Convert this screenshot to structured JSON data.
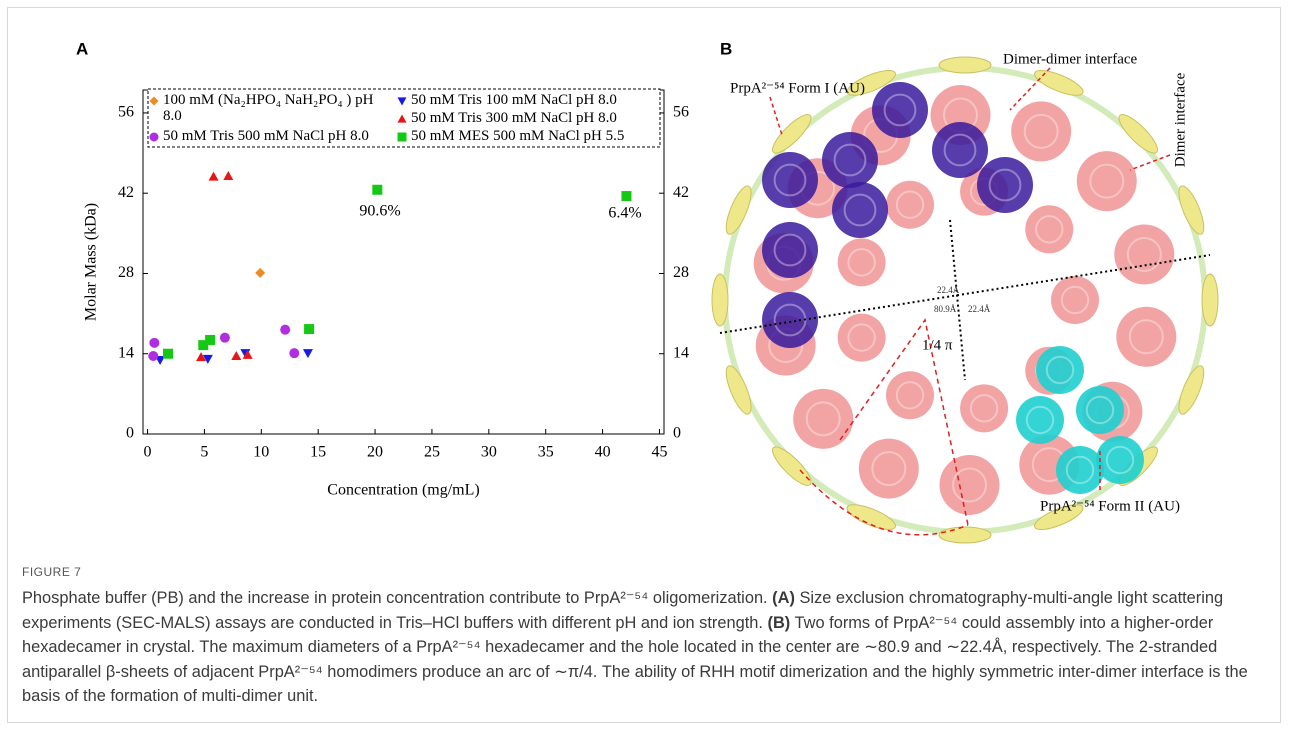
{
  "chart_data": {
    "type": "scatter",
    "panel_label": "A",
    "x_label": "Concentration (mg/mL)",
    "y_label": "Molar Mass (kDa)",
    "xlim": [
      -0.4,
      45.4
    ],
    "xticks": [
      0,
      5,
      10,
      15,
      20,
      25,
      30,
      35,
      40,
      45
    ],
    "ylim": [
      0,
      60
    ],
    "yticks": [
      0,
      14,
      28,
      42,
      56
    ],
    "y2lim": [
      0,
      60
    ],
    "y2ticks": [
      0,
      14,
      28,
      42,
      56
    ],
    "series": [
      {
        "name": "100 mM (Na₂HPO₄ NaH₂PO₄ ) pH 8.0",
        "color": "#f08a24",
        "marker": "diamond",
        "x": [
          9.9
        ],
        "values": [
          28.1
        ]
      },
      {
        "name": "50 mM Tris 100 mM NaCl pH 8.0",
        "color": "#1a1ae6",
        "marker": "triangle-down",
        "x": [
          1.1,
          5.3,
          8.6,
          14.1
        ],
        "values": [
          12.9,
          13.1,
          14.1,
          14.1
        ]
      },
      {
        "name": "50 mM Tris 500 mM NaCl pH 8.0",
        "color": "#b12ee0",
        "marker": "circle",
        "x": [
          0.6,
          0.5,
          6.8,
          12.1,
          12.9
        ],
        "values": [
          15.9,
          13.6,
          16.8,
          18.2,
          14.1
        ]
      },
      {
        "name": "50 mM Tris 300 mM NaCl pH 8.0",
        "color": "#e81515",
        "marker": "triangle-up",
        "x": [
          5.8,
          7.1,
          4.7,
          7.8,
          8.8
        ],
        "values": [
          44.9,
          45.0,
          13.4,
          13.6,
          13.8
        ]
      },
      {
        "name": "50 mM MES 500 mM NaCl pH 5.5",
        "color": "#14c814",
        "marker": "square",
        "x": [
          1.8,
          4.9,
          5.5,
          14.2,
          20.2,
          42.1
        ],
        "values": [
          14.0,
          15.5,
          16.4,
          18.3,
          42.6,
          41.5
        ]
      }
    ],
    "annotations": [
      "90.6%",
      "6.4%"
    ]
  },
  "figure": {
    "panel_b": {
      "panel_label": "B",
      "labels": [
        "PrpA²⁻⁵⁴ Form I (AU)",
        "Dimer-dimer interface",
        "Dimer interface",
        "22.4Å",
        "80.9Å",
        "22.4Å",
        "1/4  π",
        "PrpA²⁻⁵⁴ Form II (AU)"
      ]
    },
    "caption_title": "FIGURE 7",
    "caption": [
      {
        "text": "Phosphate buffer (PB) and the increase in protein concentration contribute to PrpA²⁻⁵⁴ oligomerization. ",
        "bold": false
      },
      {
        "text": "(A)",
        "bold": true
      },
      {
        "text": " Size exclusion chromatography-multi-angle light scattering experiments (SEC-MALS) assays are conducted in Tris–HCl buffers with different pH and ion strength. ",
        "bold": false
      },
      {
        "text": "(B)",
        "bold": true
      },
      {
        "text": " Two forms of PrpA²⁻⁵⁴ could assembly into a higher-order hexadecamer in crystal. The maximum diameters of a PrpA²⁻⁵⁴ hexadecamer and the hole located in the center are ∼80.9 and ∼22.4Å, respectively. The 2-stranded antiparallel β-sheets of adjacent PrpA²⁻⁵⁴ homodimers produce an arc of ∼π/4. The ability of RHH motif dimerization and the highly symmetric inter-dimer interface is the basis of the formation of multi-dimer unit.",
        "bold": false
      }
    ]
  }
}
